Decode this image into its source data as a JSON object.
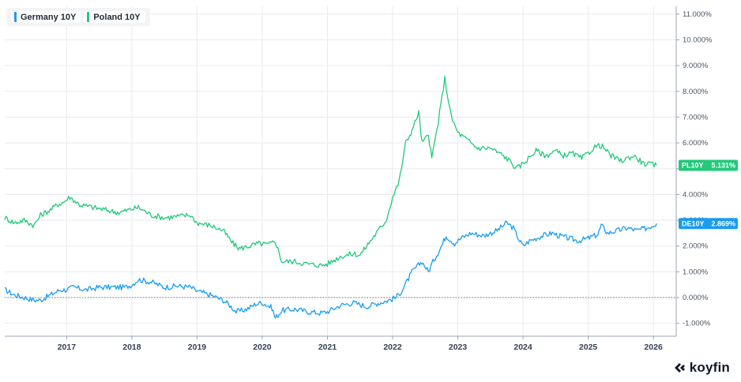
{
  "colors": {
    "germany": "#1a9cf0",
    "poland": "#22c97a",
    "zero_line": "#6b7280",
    "grid": "#e8eaed"
  },
  "legend": [
    {
      "label": "Germany 10Y",
      "color": "#1a9cf0"
    },
    {
      "label": "Poland 10Y",
      "color": "#22c97a"
    }
  ],
  "last_value_tags": [
    {
      "ticker": "PL10Y",
      "value": "5.131%",
      "color": "#22c97a"
    },
    {
      "ticker": "DE10Y",
      "value": "2.869%",
      "color": "#1a9cf0"
    }
  ],
  "logo": {
    "text": "koyfin",
    "icon": "koyfin-logo-icon"
  },
  "chart_data": {
    "type": "line",
    "title": "",
    "xlabel": "",
    "ylabel": "",
    "xlim": [
      2016.05,
      2026.35
    ],
    "ylim": [
      -1.5,
      11.3
    ],
    "y_ticks": [
      -1,
      0,
      1,
      2,
      3,
      4,
      5,
      6,
      7,
      8,
      9,
      10,
      11
    ],
    "y_tick_labels": [
      "-1.000%",
      "0.000%",
      "1.000%",
      "2.000%",
      "3.000%",
      "4.000%",
      "5.000%",
      "6.000%",
      "7.000%",
      "8.000%",
      "9.000%",
      "10.000%",
      "11.000%"
    ],
    "x_ticks": [
      2017,
      2018,
      2019,
      2020,
      2021,
      2022,
      2023,
      2024,
      2025,
      2026
    ],
    "x_tick_labels": [
      "2017",
      "2018",
      "2019",
      "2020",
      "2021",
      "2022",
      "2023",
      "2024",
      "2025",
      "2026"
    ],
    "grid": true,
    "legend_position": "top-left",
    "y_axis_position": "right",
    "series": [
      {
        "name": "Germany 10Y",
        "x": [
          2016.05,
          2016.2,
          2016.35,
          2016.5,
          2016.6,
          2016.75,
          2016.9,
          2017.0,
          2017.1,
          2017.3,
          2017.5,
          2017.7,
          2017.9,
          2018.0,
          2018.1,
          2018.3,
          2018.5,
          2018.7,
          2018.9,
          2019.0,
          2019.2,
          2019.4,
          2019.5,
          2019.6,
          2019.7,
          2019.8,
          2019.9,
          2020.0,
          2020.15,
          2020.2,
          2020.3,
          2020.5,
          2020.7,
          2020.9,
          2021.0,
          2021.2,
          2021.4,
          2021.6,
          2021.8,
          2021.95,
          2022.05,
          2022.15,
          2022.3,
          2022.45,
          2022.55,
          2022.6,
          2022.75,
          2022.82,
          2022.95,
          2023.05,
          2023.2,
          2023.4,
          2023.6,
          2023.75,
          2023.85,
          2023.95,
          2024.0,
          2024.1,
          2024.3,
          2024.45,
          2024.55,
          2024.7,
          2024.85,
          2025.0,
          2025.15,
          2025.2,
          2025.3,
          2025.45,
          2025.6,
          2025.75,
          2025.9,
          2026.05
        ],
        "values": [
          0.3,
          0.1,
          0.0,
          -0.1,
          -0.1,
          0.1,
          0.3,
          0.3,
          0.4,
          0.3,
          0.4,
          0.4,
          0.4,
          0.5,
          0.7,
          0.6,
          0.4,
          0.45,
          0.4,
          0.25,
          0.1,
          -0.1,
          -0.3,
          -0.55,
          -0.5,
          -0.4,
          -0.25,
          -0.2,
          -0.4,
          -0.8,
          -0.5,
          -0.45,
          -0.55,
          -0.6,
          -0.55,
          -0.3,
          -0.2,
          -0.35,
          -0.2,
          -0.1,
          0.0,
          0.3,
          1.0,
          1.4,
          1.0,
          1.3,
          2.0,
          2.4,
          2.1,
          2.3,
          2.5,
          2.4,
          2.6,
          2.9,
          2.7,
          2.2,
          2.0,
          2.2,
          2.4,
          2.5,
          2.4,
          2.3,
          2.2,
          2.3,
          2.45,
          2.8,
          2.5,
          2.6,
          2.7,
          2.6,
          2.7,
          2.87
        ]
      },
      {
        "name": "Poland 10Y",
        "x": [
          2016.05,
          2016.2,
          2016.35,
          2016.5,
          2016.6,
          2016.75,
          2016.85,
          2016.95,
          2017.05,
          2017.2,
          2017.4,
          2017.6,
          2017.8,
          2017.95,
          2018.1,
          2018.3,
          2018.5,
          2018.7,
          2018.9,
          2019.0,
          2019.2,
          2019.4,
          2019.55,
          2019.65,
          2019.8,
          2019.95,
          2020.1,
          2020.2,
          2020.3,
          2020.5,
          2020.7,
          2020.9,
          2021.0,
          2021.1,
          2021.2,
          2021.4,
          2021.5,
          2021.6,
          2021.75,
          2021.9,
          2022.0,
          2022.1,
          2022.2,
          2022.3,
          2022.4,
          2022.45,
          2022.55,
          2022.6,
          2022.7,
          2022.8,
          2022.9,
          2023.0,
          2023.1,
          2023.3,
          2023.5,
          2023.7,
          2023.8,
          2023.9,
          2024.0,
          2024.2,
          2024.35,
          2024.5,
          2024.6,
          2024.75,
          2024.9,
          2025.0,
          2025.1,
          2025.2,
          2025.35,
          2025.5,
          2025.7,
          2025.85,
          2026.05
        ],
        "values": [
          3.1,
          2.9,
          3.0,
          2.8,
          3.2,
          3.4,
          3.6,
          3.7,
          3.9,
          3.6,
          3.5,
          3.4,
          3.3,
          3.4,
          3.5,
          3.2,
          3.1,
          3.15,
          3.2,
          2.9,
          2.8,
          2.6,
          2.1,
          1.9,
          2.0,
          2.1,
          2.05,
          2.2,
          1.4,
          1.4,
          1.3,
          1.25,
          1.3,
          1.45,
          1.6,
          1.7,
          1.65,
          2.0,
          2.5,
          3.0,
          3.9,
          4.5,
          6.0,
          6.5,
          7.2,
          6.0,
          6.3,
          5.4,
          6.8,
          8.5,
          7.0,
          6.4,
          6.2,
          5.8,
          5.8,
          5.5,
          5.3,
          5.0,
          5.2,
          5.7,
          5.5,
          5.7,
          5.5,
          5.6,
          5.4,
          5.6,
          5.85,
          5.9,
          5.5,
          5.3,
          5.5,
          5.2,
          5.13
        ]
      }
    ]
  }
}
